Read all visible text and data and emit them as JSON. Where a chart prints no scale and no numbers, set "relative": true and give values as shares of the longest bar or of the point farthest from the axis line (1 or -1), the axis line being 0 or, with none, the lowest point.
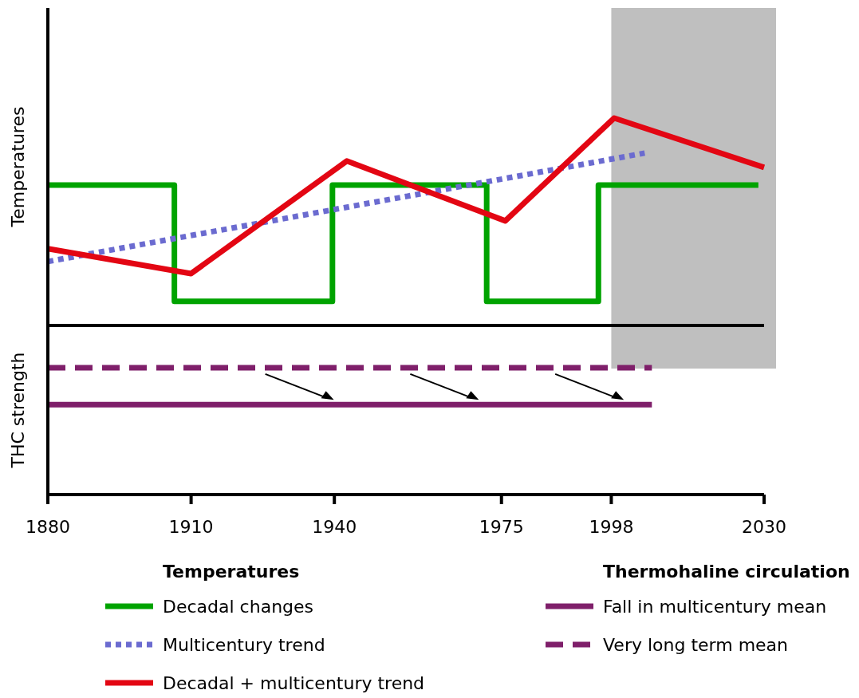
{
  "chart_data": {
    "type": "line",
    "ylabel": "Temperatures",
    "legend_title": "Temperatures",
    "relative": true,
    "xlim": [
      1880,
      2030
    ],
    "xticks": [
      1880,
      1910,
      1940,
      1975,
      1998,
      2030
    ],
    "legend": "bottom",
    "annotations": [
      "THC strength",
      "Thermohaline circulation"
    ],
    "ref_lines": [
      {
        "axis": "y",
        "value": 0.449,
        "color": "#000000"
      }
    ],
    "bands": [
      {
        "axis": "x",
        "from": 1998,
        "to": 2030,
        "color": "#bfbfbf"
      }
    ],
    "series": [
      {
        "name": "Decadal changes",
        "type": "step",
        "color": "#00a300",
        "line_style": "solid",
        "x": [
          1880,
          1906.5,
          1939.6,
          1971.9,
          1995.3,
          2028.8
        ],
        "values": [
          0.822,
          0.513,
          0.822,
          0.513,
          0.822,
          0.822
        ]
      },
      {
        "name": "Multicentury trend",
        "color": "#6b6bd0",
        "line_style": "dotted",
        "x": [
          1880,
          2005
        ],
        "values": [
          0.619,
          0.907
        ]
      },
      {
        "name": "Decadal + multicentury trend",
        "color": "#e30613",
        "line_style": "solid",
        "x": [
          1880,
          1910,
          1942.6,
          1975.8,
          1998.6,
          2030
        ],
        "values": [
          0.653,
          0.587,
          0.886,
          0.727,
          1,
          0.869
        ]
      },
      {
        "name": "Fall in multicentury mean",
        "color": "#7f1f6a",
        "line_style": "solid",
        "x": [
          1880,
          2006.5
        ],
        "values": [
          0.239,
          0.239
        ]
      },
      {
        "name": "Very long term mean",
        "color": "#7f1f6a",
        "line_style": "dashed",
        "x": [
          1880,
          2006.5
        ],
        "values": [
          0.337,
          0.337
        ]
      }
    ]
  }
}
